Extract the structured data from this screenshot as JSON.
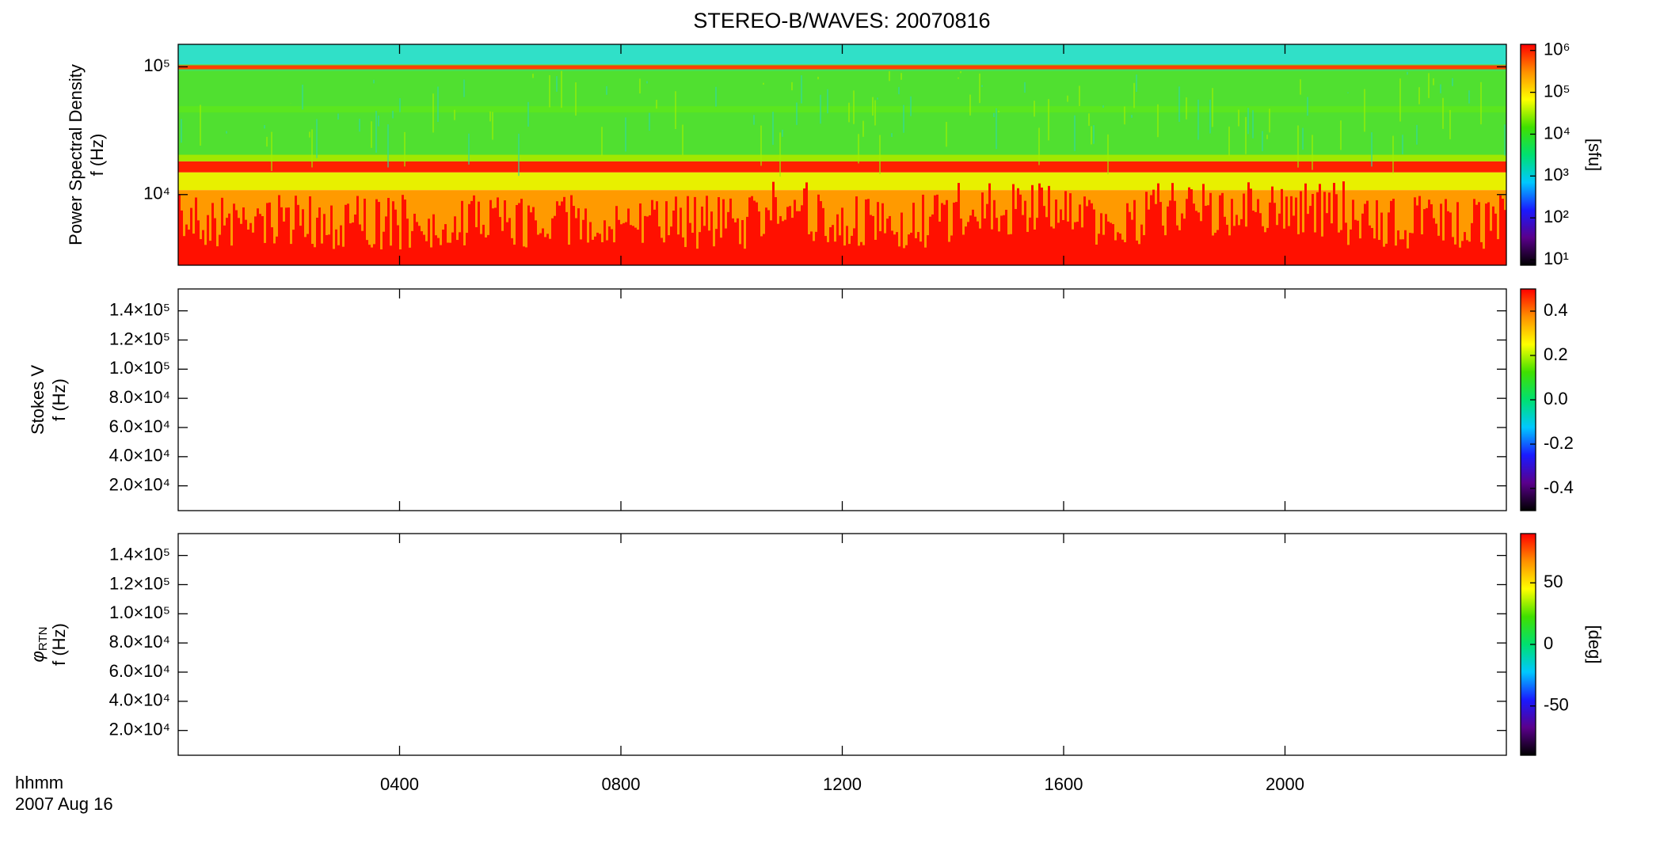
{
  "title": "STEREO-B/WAVES: 20070816",
  "x_label": [
    "hhmm",
    "2007 Aug 16"
  ],
  "chart_data": [
    {
      "type": "heatmap",
      "ylabel": [
        "Power Spectral Density",
        "f (Hz)"
      ],
      "ylog": true,
      "ylim": [
        2800,
        150000
      ],
      "yticks": [
        {
          "value": 10000,
          "label": "10⁴"
        },
        {
          "value": 100000,
          "label": "10⁵"
        }
      ],
      "xlim": [
        0,
        24
      ],
      "colorbar": {
        "log": true,
        "lim": [
          7.4,
          1400000
        ],
        "label": "[sfu]",
        "ticks": [
          {
            "value": 10,
            "label": "10¹"
          },
          {
            "value": 100,
            "label": "10²"
          },
          {
            "value": 1000,
            "label": "10³"
          },
          {
            "value": 10000,
            "label": "10⁴"
          },
          {
            "value": 100000,
            "label": "10⁵"
          },
          {
            "value": 1000000,
            "label": "10⁶"
          }
        ],
        "colors": [
          "#000000",
          "#5a008c",
          "#1a1aff",
          "#00c8ff",
          "#00e070",
          "#40e000",
          "#ffff00",
          "#ff9000",
          "#ff0000"
        ]
      }
    },
    {
      "type": "heatmap",
      "ylabel": [
        "Stokes V",
        "f (Hz)"
      ],
      "ylog": false,
      "ylim": [
        3000,
        155000
      ],
      "yticks": [
        {
          "value": 20000,
          "label": "2.0×10⁴"
        },
        {
          "value": 40000,
          "label": "4.0×10⁴"
        },
        {
          "value": 60000,
          "label": "6.0×10⁴"
        },
        {
          "value": 80000,
          "label": "8.0×10⁴"
        },
        {
          "value": 100000,
          "label": "1.0×10⁵"
        },
        {
          "value": 120000,
          "label": "1.2×10⁵"
        },
        {
          "value": 140000,
          "label": "1.4×10⁵"
        }
      ],
      "xlim": [
        0,
        24
      ],
      "colorbar": {
        "log": false,
        "lim": [
          -0.5,
          0.5
        ],
        "ticks": [
          -0.4,
          -0.2,
          {
            "value": 0,
            "label": "0.0"
          },
          0.2,
          0.4
        ],
        "colors": [
          "#000000",
          "#5a008c",
          "#1a1aff",
          "#00c8ff",
          "#00e070",
          "#40e000",
          "#ffff00",
          "#ff9000",
          "#ff0000"
        ]
      }
    },
    {
      "type": "heatmap",
      "ylabel": [
        {
          "text": "φ",
          "sub": "RTN"
        },
        "f (Hz)"
      ],
      "ylog": false,
      "ylim": [
        3000,
        155000
      ],
      "yticks": [
        {
          "value": 20000,
          "label": "2.0×10⁴"
        },
        {
          "value": 40000,
          "label": "4.0×10⁴"
        },
        {
          "value": 60000,
          "label": "6.0×10⁴"
        },
        {
          "value": 80000,
          "label": "8.0×10⁴"
        },
        {
          "value": 100000,
          "label": "1.0×10⁵"
        },
        {
          "value": 120000,
          "label": "1.2×10⁵"
        },
        {
          "value": 140000,
          "label": "1.4×10⁵"
        }
      ],
      "xlim": [
        0,
        24
      ],
      "xticks": [
        {
          "value": 4,
          "label": "0400"
        },
        {
          "value": 8,
          "label": "0800"
        },
        {
          "value": 12,
          "label": "1200"
        },
        {
          "value": 16,
          "label": "1600"
        },
        {
          "value": 20,
          "label": "2000"
        }
      ],
      "colorbar": {
        "log": false,
        "lim": [
          -90,
          90
        ],
        "label": "[deg]",
        "ticks": [
          -50,
          0,
          50
        ],
        "colors": [
          "#000000",
          "#5a008c",
          "#1a1aff",
          "#00c8ff",
          "#00e070",
          "#40e000",
          "#ffff00",
          "#ff9000",
          "#ff0000"
        ]
      }
    }
  ]
}
